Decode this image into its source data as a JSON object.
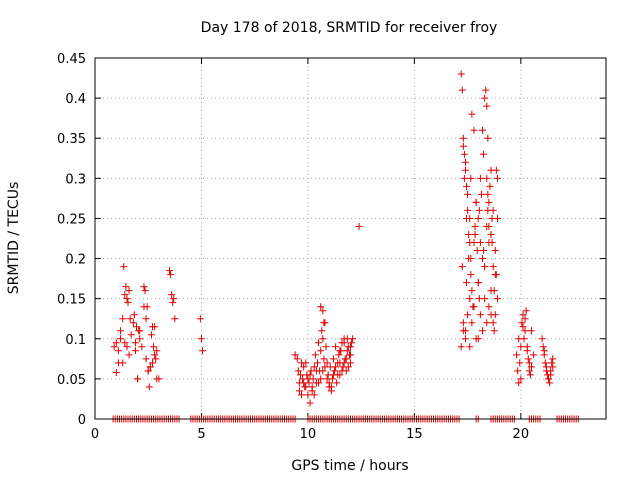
{
  "chart_data": {
    "type": "scatter",
    "title": "Day 178 of 2018, SRMTID for receiver froy",
    "xlabel": "GPS time / hours",
    "ylabel": "SRMTID / TECUs",
    "xlim": [
      0,
      24
    ],
    "ylim": [
      0,
      0.45
    ],
    "xticks": [
      0,
      5,
      10,
      15,
      20
    ],
    "xtick_labels": [
      "0",
      "5",
      "10",
      "15",
      "20"
    ],
    "yticks": [
      0,
      0.05,
      0.1,
      0.15,
      0.2,
      0.25,
      0.3,
      0.35,
      0.4,
      0.45
    ],
    "ytick_labels": [
      "0",
      "0.05",
      "0.1",
      "0.15",
      "0.2",
      "0.25",
      "0.3",
      "0.35",
      "0.4",
      "0.45"
    ],
    "grid": true,
    "marker": "+",
    "series": [
      {
        "name": "SRMTID",
        "color": "#e00000",
        "x": [
          0.9,
          1.0,
          1.1,
          1.2,
          1.3,
          1.4,
          1.5,
          1.6,
          1.7,
          1.8,
          1.9,
          2.0,
          2.1,
          2.2,
          2.3,
          2.4,
          2.5,
          2.6,
          2.7,
          2.8,
          2.9,
          3.0,
          1.0,
          1.1,
          1.2,
          1.3,
          1.35,
          1.4,
          1.45,
          1.5,
          1.55,
          1.6,
          1.65,
          1.85,
          1.9,
          1.95,
          2.0,
          2.05,
          2.1,
          2.3,
          2.35,
          2.4,
          2.45,
          2.5,
          2.55,
          2.6,
          2.65,
          2.7,
          2.75,
          2.8,
          2.85,
          2.9,
          3.5,
          3.55,
          3.6,
          3.65,
          3.7,
          3.75,
          4.95,
          5.0,
          5.05,
          9.4,
          9.5,
          9.55,
          9.6,
          9.65,
          9.7,
          9.75,
          9.8,
          9.85,
          9.9,
          9.95,
          10.0,
          10.05,
          10.1,
          10.15,
          10.2,
          10.25,
          10.3,
          10.35,
          10.4,
          10.45,
          10.5,
          10.55,
          10.6,
          10.65,
          10.7,
          10.75,
          10.8,
          10.85,
          10.9,
          10.95,
          11.0,
          11.05,
          11.1,
          11.15,
          11.2,
          11.25,
          11.3,
          11.35,
          11.4,
          11.45,
          11.5,
          11.55,
          11.6,
          11.65,
          11.7,
          11.75,
          11.8,
          11.85,
          11.9,
          11.95,
          12.0,
          12.05,
          12.1,
          9.6,
          9.8,
          10.0,
          10.2,
          10.4,
          10.6,
          10.8,
          11.0,
          11.2,
          11.4,
          11.6,
          11.8,
          12.0,
          9.7,
          9.9,
          10.1,
          10.3,
          10.5,
          10.7,
          10.9,
          11.1,
          11.3,
          11.5,
          11.7,
          11.9,
          10.6,
          10.7,
          10.75,
          11.5,
          11.7,
          11.85,
          12.0,
          12.4,
          17.2,
          17.25,
          17.3,
          17.35,
          17.4,
          17.45,
          17.5,
          17.55,
          17.6,
          17.65,
          17.7,
          17.75,
          17.8,
          17.85,
          17.9,
          17.95,
          18.0,
          18.05,
          18.1,
          18.15,
          18.2,
          18.25,
          18.3,
          18.35,
          18.4,
          18.45,
          18.5,
          18.55,
          18.6,
          18.65,
          18.7,
          18.75,
          18.8,
          18.85,
          18.9,
          17.2,
          17.3,
          17.4,
          17.5,
          17.6,
          17.7,
          17.8,
          17.9,
          18.0,
          18.1,
          18.2,
          18.3,
          18.4,
          18.5,
          18.6,
          18.7,
          18.8,
          18.9,
          17.3,
          17.35,
          17.4,
          17.45,
          17.5,
          17.55,
          17.6,
          17.65,
          17.7,
          17.8,
          17.9,
          18.0,
          18.1,
          18.2,
          18.3,
          18.4,
          18.5,
          18.6,
          18.7,
          18.8,
          18.9,
          17.25,
          17.45,
          17.65,
          17.85,
          18.05,
          18.25,
          18.45,
          18.65,
          18.85,
          17.3,
          17.4,
          17.6,
          18.0,
          18.4,
          18.45,
          18.5,
          18.6,
          18.75,
          19.8,
          19.85,
          19.9,
          19.95,
          20.0,
          20.05,
          20.1,
          20.15,
          20.2,
          20.25,
          20.3,
          20.35,
          20.4,
          20.45,
          20.5,
          19.9,
          20.0,
          20.1,
          20.2,
          20.3,
          20.4,
          20.5,
          20.6,
          21.0,
          21.05,
          21.1,
          21.15,
          21.2,
          21.25,
          21.3,
          21.35,
          21.4,
          21.45,
          21.5,
          21.1,
          21.2,
          21.3,
          21.4,
          21.5,
          0.85,
          0.95,
          1.05,
          1.15,
          1.25,
          1.35,
          1.45,
          1.55,
          1.65,
          1.75,
          1.85,
          1.95,
          2.05,
          2.15,
          2.25,
          2.35,
          2.45,
          2.55,
          2.65,
          2.75,
          2.85,
          2.95,
          3.05,
          3.15,
          3.25,
          3.35,
          3.45,
          3.55,
          3.65,
          3.75,
          3.85,
          3.95,
          4.5,
          4.6,
          4.7,
          4.8,
          4.9,
          5.0,
          5.1,
          5.2,
          5.3,
          5.4,
          5.5,
          5.6,
          5.7,
          5.8,
          5.9,
          6.0,
          6.1,
          6.2,
          6.3,
          6.4,
          6.5,
          6.6,
          6.7,
          6.8,
          6.9,
          7.0,
          7.1,
          7.2,
          7.3,
          7.4,
          7.5,
          7.6,
          7.7,
          7.8,
          7.9,
          8.0,
          8.1,
          8.2,
          8.3,
          8.4,
          8.5,
          8.6,
          8.7,
          8.8,
          8.9,
          9.0,
          9.1,
          9.2,
          9.3,
          9.4,
          10.0,
          10.1,
          10.2,
          10.3,
          10.4,
          10.5,
          10.6,
          10.7,
          10.8,
          10.9,
          11.0,
          11.1,
          11.2,
          11.3,
          11.4,
          11.5,
          11.6,
          11.7,
          11.8,
          11.9,
          12.0,
          12.1,
          12.2,
          12.3,
          12.4,
          12.5,
          12.6,
          12.7,
          12.8,
          12.9,
          13.0,
          13.1,
          13.2,
          13.3,
          13.4,
          13.5,
          13.6,
          13.7,
          13.8,
          13.9,
          14.0,
          14.1,
          14.2,
          14.3,
          14.4,
          14.5,
          14.6,
          14.7,
          14.8,
          14.9,
          15.0,
          15.1,
          15.2,
          15.3,
          15.4,
          15.5,
          15.6,
          15.7,
          15.8,
          15.9,
          16.0,
          16.1,
          16.2,
          16.3,
          16.4,
          16.5,
          16.6,
          16.7,
          16.8,
          16.9,
          17.0,
          17.1,
          17.9,
          18.0,
          18.6,
          18.7,
          18.8,
          18.9,
          19.0,
          19.1,
          19.2,
          19.3,
          19.4,
          19.5,
          19.6,
          19.7,
          20.4,
          20.5,
          20.6,
          20.7,
          20.8,
          20.9,
          21.7,
          21.8,
          21.9,
          22.0,
          22.1,
          22.2,
          22.3,
          22.4,
          22.5,
          22.6,
          22.7
        ],
        "y": [
          0.09,
          0.058,
          0.085,
          0.1,
          0.07,
          0.095,
          0.09,
          0.08,
          0.105,
          0.12,
          0.085,
          0.05,
          0.11,
          0.09,
          0.14,
          0.075,
          0.06,
          0.065,
          0.07,
          0.08,
          0.085,
          0.05,
          0.095,
          0.07,
          0.11,
          0.125,
          0.19,
          0.155,
          0.165,
          0.15,
          0.145,
          0.16,
          0.125,
          0.13,
          0.095,
          0.115,
          0.05,
          0.11,
          0.1,
          0.165,
          0.16,
          0.125,
          0.14,
          0.06,
          0.04,
          0.065,
          0.105,
          0.115,
          0.09,
          0.115,
          0.075,
          0.05,
          0.185,
          0.18,
          0.155,
          0.145,
          0.15,
          0.125,
          0.125,
          0.1,
          0.085,
          0.08,
          0.075,
          0.06,
          0.045,
          0.055,
          0.03,
          0.05,
          0.065,
          0.04,
          0.07,
          0.055,
          0.03,
          0.045,
          0.02,
          0.06,
          0.035,
          0.05,
          0.065,
          0.08,
          0.045,
          0.07,
          0.095,
          0.06,
          0.085,
          0.11,
          0.1,
          0.075,
          0.12,
          0.09,
          0.07,
          0.055,
          0.04,
          0.065,
          0.035,
          0.05,
          0.075,
          0.06,
          0.09,
          0.045,
          0.055,
          0.08,
          0.07,
          0.085,
          0.095,
          0.065,
          0.1,
          0.075,
          0.06,
          0.085,
          0.09,
          0.08,
          0.07,
          0.095,
          0.1,
          0.035,
          0.045,
          0.05,
          0.04,
          0.06,
          0.05,
          0.065,
          0.045,
          0.055,
          0.07,
          0.06,
          0.075,
          0.08,
          0.07,
          0.04,
          0.055,
          0.03,
          0.045,
          0.06,
          0.05,
          0.04,
          0.065,
          0.055,
          0.07,
          0.065,
          0.14,
          0.135,
          0.12,
          0.085,
          0.095,
          0.1,
          0.09,
          0.24,
          0.43,
          0.41,
          0.35,
          0.3,
          0.32,
          0.25,
          0.28,
          0.2,
          0.22,
          0.18,
          0.16,
          0.14,
          0.22,
          0.24,
          0.27,
          0.21,
          0.17,
          0.15,
          0.22,
          0.28,
          0.36,
          0.33,
          0.4,
          0.41,
          0.3,
          0.26,
          0.24,
          0.29,
          0.31,
          0.22,
          0.19,
          0.16,
          0.21,
          0.31,
          0.25,
          0.09,
          0.11,
          0.1,
          0.13,
          0.15,
          0.12,
          0.14,
          0.1,
          0.17,
          0.13,
          0.11,
          0.15,
          0.12,
          0.14,
          0.16,
          0.12,
          0.13,
          0.15,
          0.34,
          0.33,
          0.31,
          0.29,
          0.26,
          0.23,
          0.25,
          0.3,
          0.38,
          0.36,
          0.27,
          0.25,
          0.3,
          0.2,
          0.19,
          0.24,
          0.27,
          0.23,
          0.26,
          0.18,
          0.3,
          0.19,
          0.17,
          0.2,
          0.23,
          0.26,
          0.21,
          0.28,
          0.25,
          0.18,
          0.12,
          0.11,
          0.09,
          0.1,
          0.39,
          0.35,
          0.22,
          0.13,
          0.11,
          0.08,
          0.06,
          0.045,
          0.07,
          0.05,
          0.12,
          0.13,
          0.1,
          0.11,
          0.135,
          0.085,
          0.075,
          0.06,
          0.055,
          0.065,
          0.1,
          0.09,
          0.115,
          0.125,
          0.09,
          0.07,
          0.11,
          0.08,
          0.1,
          0.09,
          0.08,
          0.07,
          0.065,
          0.055,
          0.05,
          0.045,
          0.06,
          0.07,
          0.075,
          0.085,
          0.06,
          0.05,
          0.055,
          0.065,
          0,
          0,
          0,
          0,
          0,
          0,
          0,
          0,
          0,
          0,
          0,
          0,
          0,
          0,
          0,
          0,
          0,
          0,
          0,
          0,
          0,
          0,
          0,
          0,
          0,
          0,
          0,
          0,
          0,
          0,
          0,
          0,
          0,
          0,
          0,
          0,
          0,
          0,
          0,
          0,
          0,
          0,
          0,
          0,
          0,
          0,
          0,
          0,
          0,
          0,
          0,
          0,
          0,
          0,
          0,
          0,
          0,
          0,
          0,
          0,
          0,
          0,
          0,
          0,
          0,
          0,
          0,
          0,
          0,
          0,
          0,
          0,
          0,
          0,
          0,
          0,
          0,
          0,
          0,
          0,
          0,
          0,
          0,
          0,
          0,
          0,
          0,
          0,
          0,
          0,
          0,
          0,
          0,
          0,
          0,
          0,
          0,
          0,
          0,
          0,
          0,
          0,
          0,
          0,
          0,
          0,
          0,
          0,
          0,
          0,
          0,
          0,
          0,
          0,
          0,
          0,
          0,
          0,
          0,
          0,
          0,
          0,
          0,
          0,
          0,
          0,
          0,
          0,
          0,
          0,
          0,
          0,
          0,
          0,
          0,
          0,
          0,
          0,
          0,
          0,
          0,
          0,
          0,
          0,
          0,
          0,
          0,
          0,
          0,
          0,
          0,
          0,
          0,
          0,
          0,
          0,
          0,
          0,
          0,
          0,
          0,
          0,
          0,
          0,
          0,
          0,
          0,
          0,
          0,
          0,
          0,
          0,
          0,
          0,
          0,
          0,
          0,
          0,
          0,
          0,
          0,
          0,
          0,
          0,
          0
        ]
      }
    ]
  }
}
